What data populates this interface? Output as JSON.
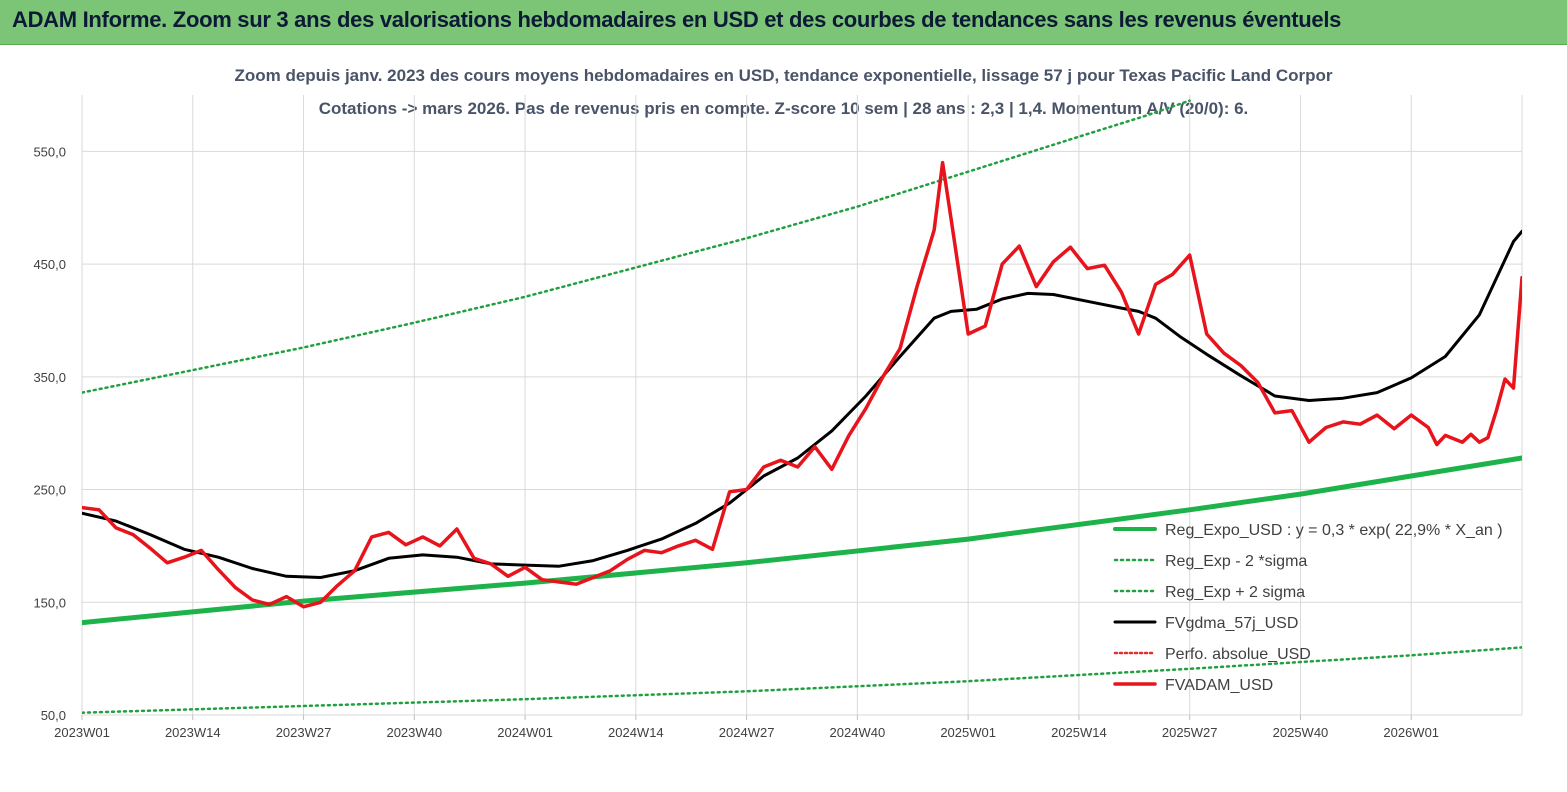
{
  "banner": {
    "title": "ADAM Informe. Zoom sur 3 ans des valorisations hebdomadaires en USD et des courbes de tendances sans les revenus éventuels"
  },
  "chart_data": {
    "type": "line",
    "title_line1": "Zoom depuis janv. 2023 des cours moyens hebdomadaires en USD, tendance exponentielle, lissage 57 j pour Texas Pacific Land Corpor",
    "title_line2": "Cotations -> mars 2026. Pas de revenus pris en compte. Z-score 10 sem | 28 ans : 2,3 | 1,4. Momentum A/V (20/0): 6.",
    "ylim": [
      50,
      600
    ],
    "yticks": [
      50,
      150,
      250,
      350,
      450,
      550
    ],
    "ytick_labels": [
      "50,0",
      "150,0",
      "250,0",
      "350,0",
      "450,0",
      "550,0"
    ],
    "x_tick_labels": [
      "2023W01",
      "2023W14",
      "2023W27",
      "2023W40",
      "2024W01",
      "2024W14",
      "2024W27",
      "2024W40",
      "2025W01",
      "2025W14",
      "2025W27",
      "2025W40",
      "2026W01"
    ],
    "x_tick_positions": [
      0,
      13,
      26,
      39,
      52,
      65,
      78,
      91,
      104,
      117,
      130,
      143,
      156
    ],
    "x_range": [
      0,
      169
    ],
    "grid": true,
    "legend_position": "bottom-right",
    "colors": {
      "trend": "#1db34a",
      "band": "#20a040",
      "smooth": "#000000",
      "perf": "#e03030",
      "price": "#e8141c"
    },
    "series": [
      {
        "name": "Reg_Expo_USD : y = 0,3 * exp( 22,9% * X_an )",
        "style": "solid-thick",
        "points": [
          [
            0,
            132
          ],
          [
            26,
            151
          ],
          [
            52,
            167
          ],
          [
            78,
            185
          ],
          [
            104,
            206
          ],
          [
            130,
            232
          ],
          [
            143,
            246
          ],
          [
            156,
            262
          ],
          [
            169,
            278
          ]
        ]
      },
      {
        "name": "Reg_Exp - 2 *sigma",
        "style": "dotted",
        "points": [
          [
            0,
            52
          ],
          [
            26,
            58
          ],
          [
            52,
            64
          ],
          [
            78,
            71
          ],
          [
            104,
            80
          ],
          [
            130,
            91
          ],
          [
            156,
            103
          ],
          [
            169,
            110
          ]
        ]
      },
      {
        "name": "Reg_Exp + 2 sigma",
        "style": "dotted",
        "points": [
          [
            0,
            336
          ],
          [
            13,
            356
          ],
          [
            26,
            376
          ],
          [
            39,
            398
          ],
          [
            52,
            421
          ],
          [
            65,
            447
          ],
          [
            78,
            473
          ],
          [
            91,
            501
          ],
          [
            104,
            532
          ],
          [
            117,
            563
          ],
          [
            125,
            582
          ],
          [
            130,
            595
          ]
        ]
      },
      {
        "name": "FVgdma_57j_USD",
        "style": "solid",
        "points": [
          [
            0,
            229
          ],
          [
            4,
            222
          ],
          [
            8,
            210
          ],
          [
            12,
            197
          ],
          [
            16,
            190
          ],
          [
            20,
            180
          ],
          [
            24,
            173
          ],
          [
            28,
            172
          ],
          [
            32,
            178
          ],
          [
            36,
            189
          ],
          [
            40,
            192
          ],
          [
            44,
            190
          ],
          [
            48,
            184
          ],
          [
            52,
            183
          ],
          [
            56,
            182
          ],
          [
            60,
            187
          ],
          [
            64,
            196
          ],
          [
            68,
            206
          ],
          [
            72,
            220
          ],
          [
            76,
            238
          ],
          [
            80,
            262
          ],
          [
            84,
            278
          ],
          [
            88,
            302
          ],
          [
            92,
            333
          ],
          [
            96,
            368
          ],
          [
            100,
            402
          ],
          [
            102,
            408
          ],
          [
            105,
            410
          ],
          [
            108,
            419
          ],
          [
            111,
            424
          ],
          [
            114,
            423
          ],
          [
            118,
            417
          ],
          [
            122,
            411
          ],
          [
            124,
            408
          ],
          [
            126,
            402
          ],
          [
            129,
            385
          ],
          [
            132,
            370
          ],
          [
            136,
            351
          ],
          [
            140,
            333
          ],
          [
            144,
            329
          ],
          [
            148,
            331
          ],
          [
            152,
            336
          ],
          [
            156,
            349
          ],
          [
            160,
            368
          ],
          [
            164,
            405
          ],
          [
            168,
            470
          ],
          [
            169,
            479
          ]
        ]
      },
      {
        "name": "Perfo. absolue_USD",
        "style": "dotted",
        "points": []
      },
      {
        "name": "FVADAM_USD",
        "style": "solid-thick",
        "points": [
          [
            0,
            234
          ],
          [
            2,
            232
          ],
          [
            4,
            216
          ],
          [
            6,
            210
          ],
          [
            8,
            198
          ],
          [
            10,
            185
          ],
          [
            12,
            190
          ],
          [
            14,
            196
          ],
          [
            16,
            179
          ],
          [
            18,
            163
          ],
          [
            20,
            152
          ],
          [
            22,
            148
          ],
          [
            24,
            155
          ],
          [
            26,
            146
          ],
          [
            28,
            150
          ],
          [
            30,
            165
          ],
          [
            32,
            178
          ],
          [
            34,
            208
          ],
          [
            36,
            212
          ],
          [
            38,
            201
          ],
          [
            40,
            208
          ],
          [
            42,
            200
          ],
          [
            44,
            215
          ],
          [
            46,
            189
          ],
          [
            48,
            184
          ],
          [
            50,
            173
          ],
          [
            52,
            181
          ],
          [
            54,
            170
          ],
          [
            56,
            168
          ],
          [
            58,
            166
          ],
          [
            60,
            172
          ],
          [
            62,
            178
          ],
          [
            64,
            188
          ],
          [
            66,
            196
          ],
          [
            68,
            194
          ],
          [
            70,
            200
          ],
          [
            72,
            205
          ],
          [
            74,
            197
          ],
          [
            76,
            248
          ],
          [
            78,
            250
          ],
          [
            80,
            270
          ],
          [
            82,
            276
          ],
          [
            84,
            270
          ],
          [
            86,
            288
          ],
          [
            88,
            268
          ],
          [
            90,
            298
          ],
          [
            92,
            322
          ],
          [
            94,
            350
          ],
          [
            96,
            375
          ],
          [
            98,
            430
          ],
          [
            100,
            480
          ],
          [
            101,
            540
          ],
          [
            102,
            490
          ],
          [
            104,
            388
          ],
          [
            106,
            395
          ],
          [
            108,
            450
          ],
          [
            110,
            466
          ],
          [
            112,
            430
          ],
          [
            114,
            452
          ],
          [
            116,
            465
          ],
          [
            118,
            446
          ],
          [
            120,
            449
          ],
          [
            122,
            425
          ],
          [
            124,
            388
          ],
          [
            126,
            432
          ],
          [
            128,
            441
          ],
          [
            130,
            458
          ],
          [
            132,
            388
          ],
          [
            134,
            371
          ],
          [
            136,
            360
          ],
          [
            138,
            345
          ],
          [
            140,
            318
          ],
          [
            142,
            320
          ],
          [
            144,
            292
          ],
          [
            146,
            305
          ],
          [
            148,
            310
          ],
          [
            150,
            308
          ],
          [
            152,
            316
          ],
          [
            154,
            304
          ],
          [
            156,
            316
          ],
          [
            158,
            305
          ],
          [
            159,
            290
          ],
          [
            160,
            298
          ],
          [
            162,
            292
          ],
          [
            163,
            299
          ],
          [
            164,
            292
          ],
          [
            165,
            296
          ],
          [
            166,
            320
          ],
          [
            167,
            348
          ],
          [
            168,
            340
          ],
          [
            169,
            438
          ]
        ]
      }
    ]
  }
}
